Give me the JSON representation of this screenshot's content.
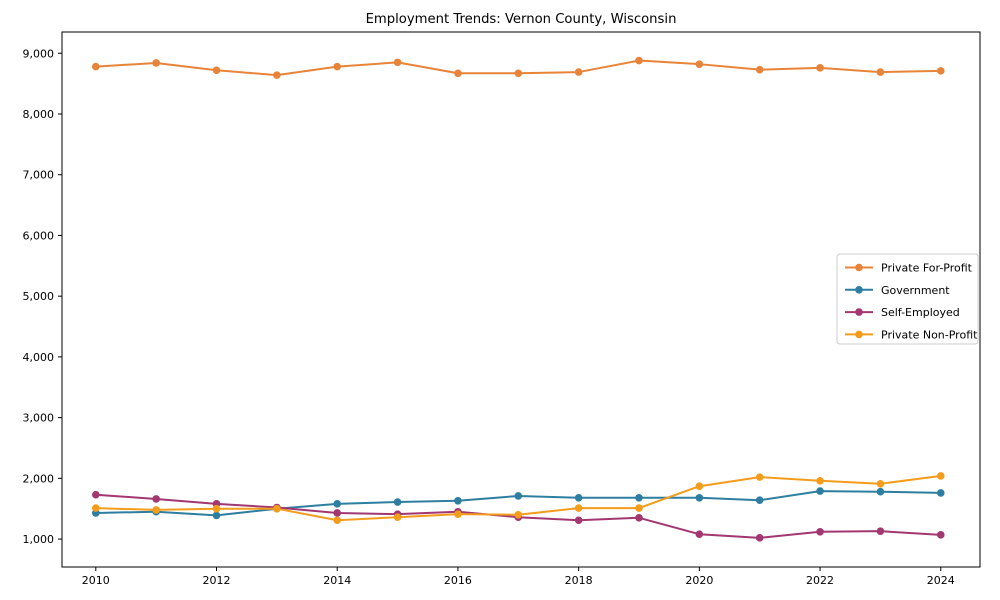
{
  "figure": {
    "background": "#ffffff",
    "axis_color": "#000000"
  },
  "chart_data": {
    "type": "line",
    "title": "Employment Trends: Vernon County, Wisconsin",
    "xlabel": "",
    "ylabel": "",
    "grid": false,
    "marker": "o",
    "legend_position": "right-middle",
    "xlim": [
      2009.44,
      2024.65
    ],
    "ylim": [
      540,
      9350
    ],
    "x": [
      2010,
      2011,
      2012,
      2013,
      2014,
      2015,
      2016,
      2017,
      2018,
      2019,
      2020,
      2021,
      2022,
      2023,
      2024
    ],
    "x_ticks": [
      {
        "value": 2010,
        "label": "2010"
      },
      {
        "value": 2012,
        "label": "2012"
      },
      {
        "value": 2014,
        "label": "2014"
      },
      {
        "value": 2016,
        "label": "2016"
      },
      {
        "value": 2018,
        "label": "2018"
      },
      {
        "value": 2020,
        "label": "2020"
      },
      {
        "value": 2022,
        "label": "2022"
      },
      {
        "value": 2024,
        "label": "2024"
      }
    ],
    "y_ticks": [
      {
        "value": 1000,
        "label": "1,000"
      },
      {
        "value": 2000,
        "label": "2,000"
      },
      {
        "value": 3000,
        "label": "3,000"
      },
      {
        "value": 4000,
        "label": "4,000"
      },
      {
        "value": 5000,
        "label": "5,000"
      },
      {
        "value": 6000,
        "label": "6,000"
      },
      {
        "value": 7000,
        "label": "7,000"
      },
      {
        "value": 8000,
        "label": "8,000"
      },
      {
        "value": 9000,
        "label": "9,000"
      }
    ],
    "series": [
      {
        "name": "Private For-Profit",
        "color": "#E8833A",
        "values": [
          8780,
          8840,
          8720,
          8640,
          8780,
          8850,
          8670,
          8670,
          8690,
          8880,
          8820,
          8730,
          8760,
          8690,
          8710
        ]
      },
      {
        "name": "Government",
        "color": "#2E7EA1",
        "values": [
          1430,
          1450,
          1390,
          1500,
          1580,
          1610,
          1630,
          1710,
          1680,
          1680,
          1680,
          1640,
          1790,
          1780,
          1760
        ]
      },
      {
        "name": "Self-Employed",
        "color": "#A23771",
        "values": [
          1730,
          1660,
          1580,
          1520,
          1430,
          1410,
          1450,
          1360,
          1310,
          1350,
          1080,
          1020,
          1120,
          1130,
          1070
        ]
      },
      {
        "name": "Private Non-Profit",
        "color": "#F49C1B",
        "values": [
          1510,
          1480,
          1500,
          1500,
          1310,
          1360,
          1410,
          1400,
          1510,
          1510,
          1870,
          2020,
          1960,
          1910,
          2040
        ]
      }
    ],
    "legend": {
      "labels": [
        "Private For-Profit",
        "Government",
        "Self-Employed",
        "Private Non-Profit"
      ],
      "box": {
        "x": 837,
        "y": 254,
        "width": 141,
        "height": 90
      },
      "border_color": "#cccccc"
    }
  }
}
